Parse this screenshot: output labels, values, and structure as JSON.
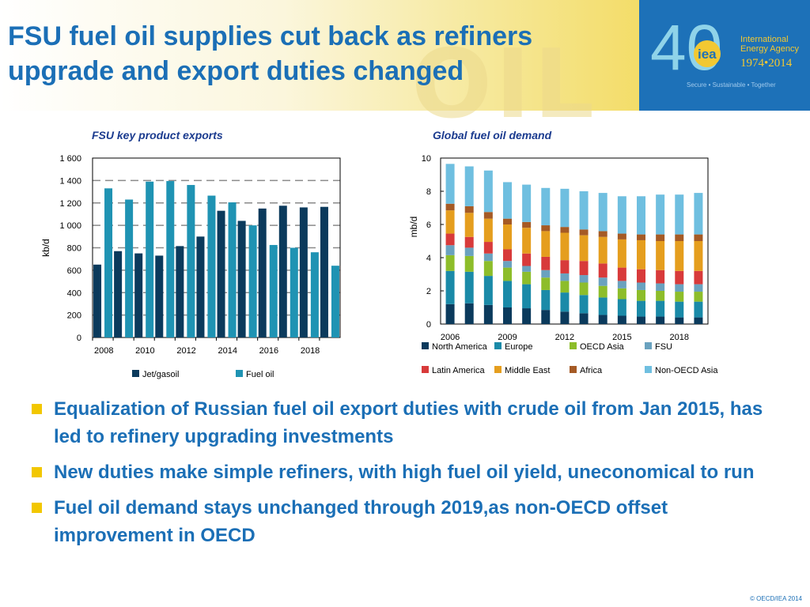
{
  "header": {
    "title": "FSU fuel oil supplies cut back as refiners upgrade and export duties changed",
    "watermark": "OIL",
    "logo": {
      "number": "40",
      "mark": "iea",
      "name_line1": "International",
      "name_line2": "Energy Agency",
      "years": "1974•2014",
      "tagline": "Secure • Sustainable • Together"
    }
  },
  "bullets": [
    "Equalization of Russian fuel oil export duties with crude oil from Jan 2015, has led to refinery upgrading investments",
    "New duties make simple refiners, with high fuel oil yield, uneconomical to run",
    "Fuel oil demand stays unchanged through 2019,as non-OECD offset improvement in OECD"
  ],
  "footer": {
    "copyright": "© OECD/IEA 2014"
  },
  "colors": {
    "title": "#1b6fb6",
    "bullet_square": "#f2c700",
    "logo_bg": "#1d71b8"
  },
  "chart_data": [
    {
      "type": "bar",
      "title": "FSU key product exports",
      "ylabel": "kb/d",
      "ylim": [
        0,
        1600
      ],
      "yticks": [
        0,
        200,
        400,
        600,
        800,
        1000,
        1200,
        1400,
        1600
      ],
      "ytick_labels": [
        "0",
        "200",
        "400",
        "600",
        "800",
        "1 000",
        "1 200",
        "1 400",
        "1 600"
      ],
      "categories": [
        "2008",
        "2009",
        "2010",
        "2011",
        "2012",
        "2013",
        "2014",
        "2015",
        "2016",
        "2017",
        "2018",
        "2019"
      ],
      "xtick_labels": [
        "2008",
        "",
        "2010",
        "",
        "2012",
        "",
        "2014",
        "",
        "2016",
        "",
        "2018",
        ""
      ],
      "legend_position": "bottom",
      "grid": "dashed-horizontal",
      "series": [
        {
          "name": "Jet/gasoil",
          "color": "#0b3a5c",
          "values": [
            650,
            770,
            750,
            730,
            815,
            900,
            1130,
            1040,
            1150,
            1175,
            1160,
            1165
          ]
        },
        {
          "name": "Fuel  oil",
          "color": "#1f93b3",
          "values": [
            1330,
            1230,
            1390,
            1395,
            1360,
            1265,
            1205,
            1000,
            825,
            800,
            760,
            640
          ]
        }
      ]
    },
    {
      "type": "bar",
      "stacked": true,
      "title": "Global fuel oil demand",
      "ylabel": "mb/d",
      "ylim": [
        0,
        10
      ],
      "yticks": [
        0,
        2,
        4,
        6,
        8,
        10
      ],
      "categories": [
        "2006",
        "2007",
        "2008",
        "2009",
        "2010",
        "2011",
        "2012",
        "2013",
        "2014",
        "2015",
        "2016",
        "2017",
        "2018",
        "2019"
      ],
      "xtick_labels": [
        "2006",
        "",
        "",
        "2009",
        "",
        "",
        "2012",
        "",
        "",
        "2015",
        "",
        "",
        "2018",
        ""
      ],
      "legend_position": "bottom",
      "grid": "none",
      "series": [
        {
          "name": "North  America",
          "color": "#0b3a5c",
          "values": [
            1.2,
            1.25,
            1.15,
            1.0,
            0.95,
            0.85,
            0.75,
            0.65,
            0.55,
            0.5,
            0.45,
            0.45,
            0.4,
            0.4
          ]
        },
        {
          "name": "Europe",
          "color": "#1a8aa8",
          "values": [
            2.0,
            1.9,
            1.75,
            1.6,
            1.45,
            1.2,
            1.15,
            1.1,
            1.05,
            1.0,
            0.95,
            0.95,
            0.95,
            0.95
          ]
        },
        {
          "name": "OECD  Asia",
          "color": "#8dbd2a",
          "values": [
            0.95,
            0.95,
            0.9,
            0.8,
            0.75,
            0.75,
            0.7,
            0.75,
            0.7,
            0.65,
            0.65,
            0.6,
            0.6,
            0.6
          ]
        },
        {
          "name": "FSU",
          "color": "#6aa2bf",
          "values": [
            0.6,
            0.5,
            0.45,
            0.4,
            0.35,
            0.45,
            0.45,
            0.45,
            0.5,
            0.45,
            0.45,
            0.45,
            0.45,
            0.45
          ]
        },
        {
          "name": "Latin  America",
          "color": "#d83a3a",
          "values": [
            0.7,
            0.65,
            0.7,
            0.7,
            0.75,
            0.8,
            0.8,
            0.85,
            0.85,
            0.8,
            0.8,
            0.8,
            0.8,
            0.8
          ]
        },
        {
          "name": "Middle  East",
          "color": "#e59e1e",
          "values": [
            1.4,
            1.45,
            1.4,
            1.5,
            1.55,
            1.55,
            1.65,
            1.55,
            1.6,
            1.7,
            1.75,
            1.75,
            1.8,
            1.8
          ]
        },
        {
          "name": "Africa",
          "color": "#a55a25",
          "values": [
            0.4,
            0.4,
            0.4,
            0.35,
            0.35,
            0.35,
            0.35,
            0.35,
            0.35,
            0.35,
            0.35,
            0.4,
            0.4,
            0.4
          ]
        },
        {
          "name": "Non-OECD  Asia",
          "color": "#6fbfe0",
          "values": [
            2.4,
            2.4,
            2.5,
            2.2,
            2.25,
            2.25,
            2.3,
            2.3,
            2.3,
            2.25,
            2.3,
            2.4,
            2.4,
            2.5
          ]
        }
      ]
    }
  ]
}
